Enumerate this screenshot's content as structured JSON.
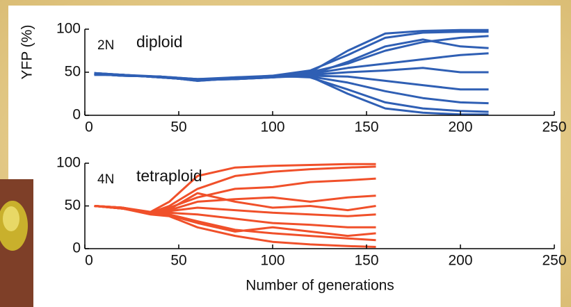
{
  "chart_data": [
    {
      "type": "line",
      "annotations": [
        "2N",
        "diploid"
      ],
      "ylabel": "YFP (%)",
      "color": "#2f5fb4",
      "x": [
        5,
        20,
        40,
        60,
        80,
        100,
        120,
        140,
        160,
        180,
        200,
        215
      ],
      "series": [
        {
          "values": [
            48,
            47,
            45,
            41,
            43,
            45,
            50,
            75,
            95,
            98,
            99,
            99
          ]
        },
        {
          "values": [
            49,
            47,
            44,
            41,
            43,
            46,
            52,
            70,
            90,
            96,
            97,
            97
          ]
        },
        {
          "values": [
            48,
            46,
            45,
            42,
            44,
            45,
            50,
            60,
            75,
            85,
            90,
            92
          ]
        },
        {
          "values": [
            47,
            47,
            44,
            41,
            42,
            44,
            48,
            55,
            60,
            65,
            70,
            72
          ]
        },
        {
          "values": [
            48,
            46,
            45,
            40,
            43,
            45,
            47,
            50,
            52,
            55,
            50,
            50
          ]
        },
        {
          "values": [
            49,
            47,
            44,
            41,
            42,
            44,
            46,
            45,
            40,
            35,
            30,
            30
          ]
        },
        {
          "values": [
            48,
            46,
            45,
            42,
            43,
            45,
            45,
            38,
            28,
            20,
            15,
            14
          ]
        },
        {
          "values": [
            47,
            47,
            44,
            41,
            44,
            46,
            44,
            30,
            15,
            8,
            5,
            4
          ]
        },
        {
          "values": [
            48,
            46,
            45,
            40,
            43,
            45,
            45,
            25,
            8,
            3,
            1,
            1
          ]
        },
        {
          "values": [
            49,
            47,
            44,
            42,
            42,
            44,
            47,
            62,
            80,
            88,
            80,
            78
          ]
        }
      ],
      "xlim": [
        0,
        250
      ],
      "ylim": [
        0,
        100
      ],
      "xticks": [
        0,
        50,
        100,
        150,
        200,
        250
      ],
      "yticks": [
        0,
        50,
        100
      ]
    },
    {
      "type": "line",
      "annotations": [
        "4N",
        "tetraploid"
      ],
      "xlabel": "Number of generations",
      "color": "#f0502a",
      "x": [
        5,
        20,
        35,
        45,
        60,
        80,
        100,
        120,
        140,
        155
      ],
      "series": [
        {
          "values": [
            50,
            48,
            43,
            55,
            85,
            95,
            97,
            98,
            99,
            99
          ]
        },
        {
          "values": [
            50,
            48,
            42,
            50,
            70,
            85,
            90,
            93,
            95,
            96
          ]
        },
        {
          "values": [
            50,
            48,
            42,
            48,
            60,
            70,
            72,
            78,
            80,
            82
          ]
        },
        {
          "values": [
            50,
            47,
            42,
            45,
            55,
            58,
            60,
            55,
            60,
            62
          ]
        },
        {
          "values": [
            50,
            47,
            41,
            44,
            48,
            45,
            42,
            40,
            38,
            40
          ]
        },
        {
          "values": [
            50,
            47,
            41,
            42,
            40,
            35,
            30,
            28,
            25,
            25
          ]
        },
        {
          "values": [
            50,
            47,
            41,
            40,
            32,
            22,
            18,
            15,
            12,
            10
          ]
        },
        {
          "values": [
            50,
            47,
            40,
            38,
            25,
            15,
            8,
            5,
            3,
            2
          ]
        },
        {
          "values": [
            50,
            48,
            42,
            46,
            65,
            55,
            48,
            50,
            45,
            50
          ]
        },
        {
          "values": [
            50,
            48,
            41,
            39,
            30,
            20,
            25,
            20,
            15,
            18
          ]
        }
      ],
      "xlim": [
        0,
        250
      ],
      "ylim": [
        0,
        100
      ],
      "xticks": [
        0,
        50,
        100,
        150,
        200,
        250
      ],
      "yticks": [
        0,
        50,
        100
      ]
    }
  ]
}
